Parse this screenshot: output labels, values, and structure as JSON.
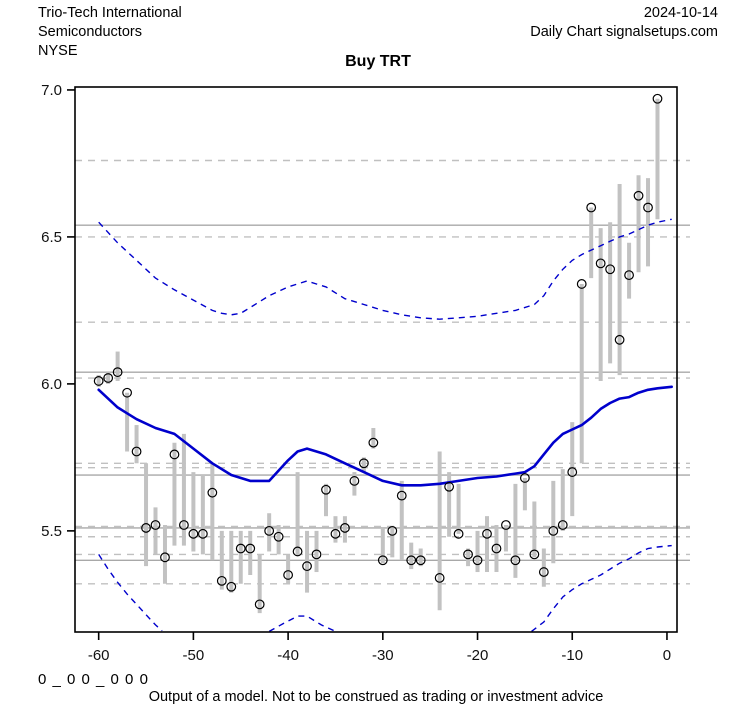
{
  "header": {
    "company": "Trio-Tech International",
    "industry": "Semiconductors",
    "exchange": "NYSE",
    "date": "2024-10-14",
    "source": "Daily Chart signalsetups.com"
  },
  "title": "Buy TRT",
  "footer": {
    "code": "0 _ 0 0 _ 0 0 0",
    "disclaimer": "Output of a model. Not to be construed as trading or investment advice"
  },
  "chart_data": {
    "type": "bar",
    "subtype": "daily-ohlc-forecast",
    "xlabel": "",
    "ylabel": "",
    "xlim": [
      -62.5,
      1.06
    ],
    "ylim": [
      5.156,
      7.01
    ],
    "grid": "horizontal-levels",
    "x_ticks": [
      {
        "v": -60,
        "label": "-60"
      },
      {
        "v": -50,
        "label": "-50"
      },
      {
        "v": -40,
        "label": "-40"
      },
      {
        "v": -30,
        "label": "-30"
      },
      {
        "v": -20,
        "label": "-20"
      },
      {
        "v": -10,
        "label": "-10"
      },
      {
        "v": 0,
        "label": "0"
      }
    ],
    "y_ticks": [
      {
        "v": 7.0,
        "label": "7.0"
      },
      {
        "v": 6.5,
        "label": "6.5"
      },
      {
        "v": 6.0,
        "label": "6.0"
      },
      {
        "v": 5.5,
        "label": "5.5"
      }
    ],
    "levels_solid": [
      6.54,
      6.04,
      5.69,
      5.51,
      5.4
    ],
    "levels_dashed": [
      6.76,
      6.5,
      6.21,
      6.02,
      5.73,
      5.715,
      5.515,
      5.48,
      5.42,
      5.32
    ],
    "bars_format": [
      "day",
      "high",
      "low",
      "close"
    ],
    "bars": [
      [
        -60,
        6.03,
        5.99,
        6.01
      ],
      [
        -59,
        6.04,
        6.0,
        6.02
      ],
      [
        -58,
        6.11,
        6.01,
        6.04
      ],
      [
        -57,
        5.97,
        5.77,
        5.97
      ],
      [
        -56,
        5.86,
        5.73,
        5.77
      ],
      [
        -55,
        5.73,
        5.38,
        5.51
      ],
      [
        -54,
        5.58,
        5.42,
        5.52
      ],
      [
        -53,
        5.52,
        5.32,
        5.41
      ],
      [
        -52,
        5.8,
        5.45,
        5.76
      ],
      [
        -51,
        5.83,
        5.45,
        5.52
      ],
      [
        -50,
        5.7,
        5.43,
        5.49
      ],
      [
        -49,
        5.69,
        5.42,
        5.49
      ],
      [
        -48,
        5.73,
        5.4,
        5.63
      ],
      [
        -47,
        5.5,
        5.3,
        5.33
      ],
      [
        -46,
        5.5,
        5.29,
        5.31
      ],
      [
        -45,
        5.5,
        5.32,
        5.44
      ],
      [
        -44,
        5.5,
        5.35,
        5.44
      ],
      [
        -43,
        5.42,
        5.22,
        5.25
      ],
      [
        -42,
        5.56,
        5.43,
        5.5
      ],
      [
        -41,
        5.52,
        5.42,
        5.48
      ],
      [
        -40,
        5.42,
        5.32,
        5.35
      ],
      [
        -39,
        5.7,
        5.42,
        5.43
      ],
      [
        -38,
        5.5,
        5.29,
        5.38
      ],
      [
        -37,
        5.5,
        5.36,
        5.42
      ],
      [
        -36,
        5.66,
        5.55,
        5.64
      ],
      [
        -35,
        5.55,
        5.46,
        5.49
      ],
      [
        -34,
        5.55,
        5.46,
        5.51
      ],
      [
        -33,
        5.7,
        5.62,
        5.67
      ],
      [
        -32,
        5.75,
        5.7,
        5.73
      ],
      [
        -31,
        5.85,
        5.78,
        5.8
      ],
      [
        -30,
        5.51,
        5.39,
        5.4
      ],
      [
        -29,
        5.51,
        5.41,
        5.5
      ],
      [
        -28,
        5.67,
        5.4,
        5.62
      ],
      [
        -27,
        5.46,
        5.37,
        5.4
      ],
      [
        -26,
        5.44,
        5.38,
        5.4
      ],
      [
        -24,
        5.77,
        5.23,
        5.34
      ],
      [
        -23,
        5.7,
        5.48,
        5.65
      ],
      [
        -22,
        5.66,
        5.49,
        5.49
      ],
      [
        -21,
        5.44,
        5.38,
        5.42
      ],
      [
        -20,
        5.5,
        5.36,
        5.4
      ],
      [
        -19,
        5.55,
        5.36,
        5.49
      ],
      [
        -18,
        5.52,
        5.36,
        5.44
      ],
      [
        -17,
        5.52,
        5.43,
        5.52
      ],
      [
        -16,
        5.66,
        5.34,
        5.4
      ],
      [
        -15,
        5.68,
        5.57,
        5.68
      ],
      [
        -14,
        5.6,
        5.41,
        5.42
      ],
      [
        -13,
        5.44,
        5.31,
        5.36
      ],
      [
        -12,
        5.67,
        5.39,
        5.5
      ],
      [
        -11,
        5.71,
        5.5,
        5.52
      ],
      [
        -10,
        5.87,
        5.55,
        5.7
      ],
      [
        -9,
        6.34,
        5.73,
        6.34
      ],
      [
        -8,
        6.6,
        6.36,
        6.6
      ],
      [
        -7,
        6.53,
        6.01,
        6.41
      ],
      [
        -6,
        6.55,
        6.07,
        6.39
      ],
      [
        -5,
        6.68,
        6.03,
        6.15
      ],
      [
        -4,
        6.48,
        6.29,
        6.37
      ],
      [
        -3,
        6.71,
        6.38,
        6.64
      ],
      [
        -2,
        6.7,
        6.4,
        6.6
      ],
      [
        -1,
        6.97,
        6.56,
        6.97
      ]
    ],
    "midline": [
      [
        -60,
        5.98
      ],
      [
        -58,
        5.92
      ],
      [
        -57,
        5.9
      ],
      [
        -56,
        5.88
      ],
      [
        -54,
        5.85
      ],
      [
        -52,
        5.83
      ],
      [
        -50,
        5.78
      ],
      [
        -48,
        5.73
      ],
      [
        -46,
        5.69
      ],
      [
        -44,
        5.67
      ],
      [
        -42,
        5.67
      ],
      [
        -40,
        5.74
      ],
      [
        -39,
        5.77
      ],
      [
        -38,
        5.78
      ],
      [
        -36,
        5.76
      ],
      [
        -34,
        5.73
      ],
      [
        -32,
        5.7
      ],
      [
        -30,
        5.67
      ],
      [
        -28,
        5.655
      ],
      [
        -26,
        5.655
      ],
      [
        -24,
        5.66
      ],
      [
        -22,
        5.67
      ],
      [
        -20,
        5.68
      ],
      [
        -18,
        5.685
      ],
      [
        -16,
        5.695
      ],
      [
        -15,
        5.7
      ],
      [
        -14,
        5.72
      ],
      [
        -13,
        5.76
      ],
      [
        -12,
        5.8
      ],
      [
        -11,
        5.83
      ],
      [
        -10,
        5.845
      ],
      [
        -9,
        5.86
      ],
      [
        -8,
        5.885
      ],
      [
        -7,
        5.915
      ],
      [
        -6,
        5.935
      ],
      [
        -5,
        5.95
      ],
      [
        -4,
        5.955
      ],
      [
        -3,
        5.97
      ],
      [
        -2,
        5.98
      ],
      [
        -1,
        5.985
      ],
      [
        0.5,
        5.99
      ]
    ],
    "upper_band": [
      [
        -60,
        6.55
      ],
      [
        -58,
        6.48
      ],
      [
        -56,
        6.42
      ],
      [
        -54,
        6.36
      ],
      [
        -52,
        6.32
      ],
      [
        -50,
        6.285
      ],
      [
        -48,
        6.25
      ],
      [
        -47,
        6.24
      ],
      [
        -46,
        6.235
      ],
      [
        -45,
        6.24
      ],
      [
        -44,
        6.26
      ],
      [
        -42,
        6.3
      ],
      [
        -40,
        6.33
      ],
      [
        -38,
        6.35
      ],
      [
        -37,
        6.34
      ],
      [
        -36,
        6.33
      ],
      [
        -34,
        6.29
      ],
      [
        -32,
        6.27
      ],
      [
        -30,
        6.25
      ],
      [
        -28,
        6.235
      ],
      [
        -26,
        6.225
      ],
      [
        -24,
        6.22
      ],
      [
        -22,
        6.225
      ],
      [
        -20,
        6.23
      ],
      [
        -18,
        6.24
      ],
      [
        -16,
        6.25
      ],
      [
        -14,
        6.27
      ],
      [
        -13,
        6.3
      ],
      [
        -12,
        6.35
      ],
      [
        -11,
        6.39
      ],
      [
        -10,
        6.42
      ],
      [
        -9,
        6.44
      ],
      [
        -8,
        6.455
      ],
      [
        -7,
        6.47
      ],
      [
        -6,
        6.485
      ],
      [
        -5,
        6.5
      ],
      [
        -4,
        6.51
      ],
      [
        -3,
        6.525
      ],
      [
        -2,
        6.54
      ],
      [
        -1,
        6.55
      ],
      [
        0.5,
        6.56
      ]
    ],
    "lower_band_segments": [
      [
        [
          -60,
          5.42
        ],
        [
          -59,
          5.37
        ],
        [
          -58,
          5.325
        ],
        [
          -57,
          5.285
        ],
        [
          -56,
          5.25
        ],
        [
          -55,
          5.215
        ],
        [
          -54,
          5.18
        ],
        [
          -53.3,
          5.16
        ]
      ],
      [
        [
          -42,
          5.158
        ],
        [
          -40.5,
          5.185
        ],
        [
          -39,
          5.21
        ],
        [
          -38,
          5.21
        ],
        [
          -36.5,
          5.18
        ],
        [
          -35,
          5.158
        ]
      ],
      [
        [
          -14.3,
          5.158
        ],
        [
          -13,
          5.19
        ],
        [
          -12,
          5.235
        ],
        [
          -11,
          5.275
        ],
        [
          -10,
          5.3
        ],
        [
          -9,
          5.32
        ],
        [
          -8,
          5.335
        ],
        [
          -7,
          5.35
        ],
        [
          -6,
          5.37
        ],
        [
          -5,
          5.39
        ],
        [
          -4,
          5.405
        ],
        [
          -3,
          5.425
        ],
        [
          -2,
          5.44
        ],
        [
          -1,
          5.445
        ],
        [
          0.5,
          5.45
        ]
      ]
    ],
    "colors": {
      "line": "#0000cc",
      "band": "#0000cc",
      "bar": "#c2c2c2",
      "grid_solid": "#a8a8a8",
      "grid_dashed": "#c0c0c0",
      "marker": "#000000",
      "frame": "#000000"
    }
  }
}
